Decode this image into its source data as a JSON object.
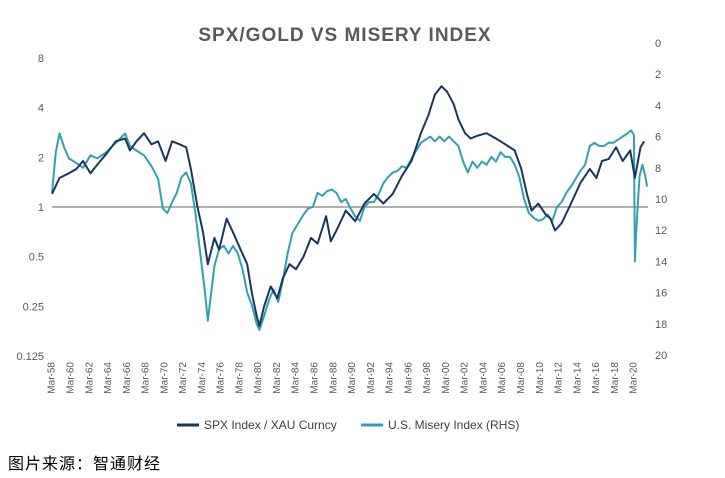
{
  "source": "图片来源：智通财经",
  "chart_data": {
    "type": "line",
    "title": "SPX/GOLD VS MISERY INDEX",
    "left_axis": {
      "scale": "log2",
      "ticks": [
        8,
        4,
        2,
        1,
        0.5,
        0.25,
        0.125
      ],
      "range": [
        0.125,
        8
      ]
    },
    "right_axis": {
      "reversed": true,
      "ticks": [
        0,
        2,
        4,
        6,
        8,
        10,
        12,
        14,
        16,
        18,
        20
      ],
      "range": [
        0,
        20
      ]
    },
    "x_ticks": [
      "Mar-58",
      "Mar-60",
      "Mar-62",
      "Mar-64",
      "Mar-66",
      "Mar-68",
      "Mar-70",
      "Mar-72",
      "Mar-74",
      "Mar-76",
      "Mar-78",
      "Mar-80",
      "Mar-82",
      "Mar-84",
      "Mar-86",
      "Mar-88",
      "Mar-90",
      "Mar-92",
      "Mar-94",
      "Mar-96",
      "Mar-98",
      "Mar-00",
      "Mar-02",
      "Mar-04",
      "Mar-06",
      "Mar-08",
      "Mar-10",
      "Mar-12",
      "Mar-14",
      "Mar-16",
      "Mar-18",
      "Mar-20"
    ],
    "reference_line": 1,
    "legend_position": "bottom",
    "colors": {
      "ratio": "#17375e",
      "misery": "#31a0b0"
    },
    "series": [
      {
        "name": "SPX Index / XAU Curncy",
        "axis": "left",
        "points": [
          [
            1958.2,
            1.2
          ],
          [
            1959.0,
            1.5
          ],
          [
            1960.0,
            1.6
          ],
          [
            1960.8,
            1.7
          ],
          [
            1961.5,
            1.9
          ],
          [
            1962.3,
            1.6
          ],
          [
            1963.0,
            1.8
          ],
          [
            1964.0,
            2.1
          ],
          [
            1965.0,
            2.5
          ],
          [
            1966.0,
            2.6
          ],
          [
            1966.5,
            2.2
          ],
          [
            1967.2,
            2.5
          ],
          [
            1968.0,
            2.8
          ],
          [
            1968.8,
            2.4
          ],
          [
            1969.5,
            2.5
          ],
          [
            1970.3,
            1.9
          ],
          [
            1971.0,
            2.5
          ],
          [
            1971.8,
            2.4
          ],
          [
            1972.5,
            2.3
          ],
          [
            1973.0,
            1.7
          ],
          [
            1973.7,
            1.0
          ],
          [
            1974.3,
            0.7
          ],
          [
            1974.8,
            0.45
          ],
          [
            1975.5,
            0.65
          ],
          [
            1976.0,
            0.55
          ],
          [
            1976.8,
            0.85
          ],
          [
            1977.5,
            0.7
          ],
          [
            1978.3,
            0.55
          ],
          [
            1979.0,
            0.45
          ],
          [
            1979.5,
            0.3
          ],
          [
            1980.0,
            0.22
          ],
          [
            1980.3,
            0.19
          ],
          [
            1980.8,
            0.25
          ],
          [
            1981.5,
            0.33
          ],
          [
            1982.2,
            0.28
          ],
          [
            1982.8,
            0.37
          ],
          [
            1983.5,
            0.45
          ],
          [
            1984.2,
            0.42
          ],
          [
            1985.0,
            0.5
          ],
          [
            1985.8,
            0.65
          ],
          [
            1986.5,
            0.6
          ],
          [
            1987.4,
            0.88
          ],
          [
            1987.9,
            0.62
          ],
          [
            1988.5,
            0.72
          ],
          [
            1989.5,
            0.95
          ],
          [
            1990.5,
            0.82
          ],
          [
            1991.5,
            1.05
          ],
          [
            1992.5,
            1.2
          ],
          [
            1993.5,
            1.05
          ],
          [
            1994.5,
            1.2
          ],
          [
            1995.5,
            1.55
          ],
          [
            1996.5,
            1.9
          ],
          [
            1997.5,
            2.8
          ],
          [
            1998.3,
            3.6
          ],
          [
            1999.0,
            4.8
          ],
          [
            1999.7,
            5.4
          ],
          [
            2000.3,
            5.0
          ],
          [
            2001.0,
            4.2
          ],
          [
            2001.5,
            3.4
          ],
          [
            2002.2,
            2.8
          ],
          [
            2002.8,
            2.6
          ],
          [
            2003.5,
            2.7
          ],
          [
            2004.5,
            2.8
          ],
          [
            2005.5,
            2.6
          ],
          [
            2006.5,
            2.4
          ],
          [
            2007.5,
            2.2
          ],
          [
            2008.2,
            1.7
          ],
          [
            2008.8,
            1.2
          ],
          [
            2009.3,
            0.95
          ],
          [
            2010.0,
            1.05
          ],
          [
            2010.8,
            0.9
          ],
          [
            2011.3,
            0.85
          ],
          [
            2011.8,
            0.72
          ],
          [
            2012.5,
            0.8
          ],
          [
            2013.5,
            1.05
          ],
          [
            2014.5,
            1.4
          ],
          [
            2015.5,
            1.7
          ],
          [
            2016.2,
            1.5
          ],
          [
            2016.8,
            1.9
          ],
          [
            2017.5,
            1.95
          ],
          [
            2018.3,
            2.3
          ],
          [
            2019.0,
            1.9
          ],
          [
            2019.8,
            2.2
          ],
          [
            2020.3,
            1.5
          ],
          [
            2020.9,
            2.3
          ],
          [
            2021.3,
            2.5
          ]
        ]
      },
      {
        "name": "U.S. Misery Index (RHS)",
        "axis": "right",
        "points": [
          [
            1958.2,
            9.6
          ],
          [
            1958.6,
            7.0
          ],
          [
            1959.0,
            5.8
          ],
          [
            1959.5,
            6.7
          ],
          [
            1960.0,
            7.4
          ],
          [
            1960.8,
            7.7
          ],
          [
            1961.5,
            8.0
          ],
          [
            1962.3,
            7.2
          ],
          [
            1963.0,
            7.4
          ],
          [
            1964.0,
            7.0
          ],
          [
            1965.0,
            6.4
          ],
          [
            1966.0,
            5.8
          ],
          [
            1966.5,
            6.6
          ],
          [
            1967.2,
            6.9
          ],
          [
            1968.0,
            7.2
          ],
          [
            1968.8,
            7.9
          ],
          [
            1969.5,
            8.7
          ],
          [
            1970.0,
            10.6
          ],
          [
            1970.5,
            10.9
          ],
          [
            1971.0,
            10.2
          ],
          [
            1971.5,
            9.6
          ],
          [
            1972.0,
            8.6
          ],
          [
            1972.5,
            8.3
          ],
          [
            1973.0,
            9.0
          ],
          [
            1973.5,
            11.0
          ],
          [
            1974.0,
            13.5
          ],
          [
            1974.5,
            16.0
          ],
          [
            1974.8,
            17.8
          ],
          [
            1975.5,
            14.3
          ],
          [
            1976.0,
            13.2
          ],
          [
            1976.5,
            13.0
          ],
          [
            1977.0,
            13.5
          ],
          [
            1977.5,
            13.0
          ],
          [
            1978.0,
            13.5
          ],
          [
            1978.5,
            14.5
          ],
          [
            1979.0,
            16.0
          ],
          [
            1979.5,
            16.8
          ],
          [
            1980.0,
            18.0
          ],
          [
            1980.3,
            18.4
          ],
          [
            1980.8,
            17.5
          ],
          [
            1981.3,
            16.5
          ],
          [
            1981.8,
            15.8
          ],
          [
            1982.3,
            16.6
          ],
          [
            1982.8,
            15.2
          ],
          [
            1983.3,
            13.5
          ],
          [
            1983.8,
            12.2
          ],
          [
            1984.5,
            11.5
          ],
          [
            1985.0,
            11.0
          ],
          [
            1985.5,
            10.6
          ],
          [
            1986.0,
            10.5
          ],
          [
            1986.5,
            9.6
          ],
          [
            1987.0,
            9.8
          ],
          [
            1987.5,
            9.5
          ],
          [
            1988.0,
            9.4
          ],
          [
            1988.5,
            9.6
          ],
          [
            1989.0,
            10.2
          ],
          [
            1989.5,
            10.0
          ],
          [
            1990.0,
            10.6
          ],
          [
            1990.5,
            11.1
          ],
          [
            1991.0,
            11.4
          ],
          [
            1991.5,
            10.5
          ],
          [
            1992.0,
            10.2
          ],
          [
            1992.5,
            10.2
          ],
          [
            1993.0,
            9.7
          ],
          [
            1993.5,
            9.0
          ],
          [
            1994.0,
            8.6
          ],
          [
            1994.5,
            8.3
          ],
          [
            1995.0,
            8.2
          ],
          [
            1995.5,
            7.9
          ],
          [
            1996.0,
            8.0
          ],
          [
            1996.5,
            7.4
          ],
          [
            1997.0,
            6.9
          ],
          [
            1997.5,
            6.4
          ],
          [
            1998.0,
            6.2
          ],
          [
            1998.5,
            6.0
          ],
          [
            1999.0,
            6.3
          ],
          [
            1999.5,
            6.0
          ],
          [
            2000.0,
            6.3
          ],
          [
            2000.5,
            6.0
          ],
          [
            2001.0,
            6.3
          ],
          [
            2001.5,
            6.6
          ],
          [
            2002.0,
            7.6
          ],
          [
            2002.5,
            8.3
          ],
          [
            2003.0,
            7.6
          ],
          [
            2003.5,
            8.0
          ],
          [
            2004.0,
            7.6
          ],
          [
            2004.5,
            7.8
          ],
          [
            2005.0,
            7.3
          ],
          [
            2005.5,
            7.6
          ],
          [
            2006.0,
            7.0
          ],
          [
            2006.5,
            7.3
          ],
          [
            2007.0,
            7.3
          ],
          [
            2007.5,
            7.8
          ],
          [
            2008.0,
            8.6
          ],
          [
            2008.5,
            10.0
          ],
          [
            2009.0,
            10.9
          ],
          [
            2009.5,
            11.2
          ],
          [
            2010.0,
            11.4
          ],
          [
            2010.5,
            11.3
          ],
          [
            2011.0,
            11.0
          ],
          [
            2011.5,
            11.4
          ],
          [
            2012.0,
            10.5
          ],
          [
            2012.5,
            10.2
          ],
          [
            2013.0,
            9.6
          ],
          [
            2013.5,
            9.2
          ],
          [
            2014.0,
            8.7
          ],
          [
            2014.5,
            8.2
          ],
          [
            2015.0,
            7.8
          ],
          [
            2015.5,
            6.6
          ],
          [
            2016.0,
            6.4
          ],
          [
            2016.5,
            6.6
          ],
          [
            2017.0,
            6.6
          ],
          [
            2017.5,
            6.4
          ],
          [
            2018.0,
            6.4
          ],
          [
            2018.5,
            6.2
          ],
          [
            2019.0,
            6.0
          ],
          [
            2019.5,
            5.8
          ],
          [
            2019.9,
            5.6
          ],
          [
            2020.2,
            5.9
          ],
          [
            2020.3,
            14.0
          ],
          [
            2020.5,
            11.5
          ],
          [
            2020.8,
            8.5
          ],
          [
            2021.1,
            7.8
          ],
          [
            2021.4,
            8.5
          ],
          [
            2021.6,
            9.2
          ]
        ]
      }
    ]
  }
}
